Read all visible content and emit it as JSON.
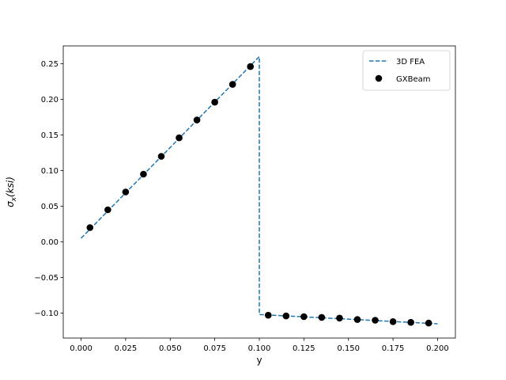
{
  "chart_data": {
    "type": "line",
    "title": "",
    "xlabel": "y",
    "ylabel": "σx(ksi)",
    "ylabel_parts": {
      "main": "σ",
      "sub": "x",
      "rest": "(ksi)"
    },
    "xlim": [
      -0.01,
      0.21
    ],
    "ylim": [
      -0.135,
      0.275
    ],
    "xticks": [
      0.0,
      0.025,
      0.05,
      0.075,
      0.1,
      0.125,
      0.15,
      0.175,
      0.2
    ],
    "xtick_labels": [
      "0.000",
      "0.025",
      "0.050",
      "0.075",
      "0.100",
      "0.125",
      "0.150",
      "0.175",
      "0.200"
    ],
    "yticks": [
      -0.1,
      -0.05,
      0.0,
      0.05,
      0.1,
      0.15,
      0.2,
      0.25
    ],
    "ytick_labels": [
      "−0.10",
      "−0.05",
      "0.00",
      "0.05",
      "0.10",
      "0.15",
      "0.20",
      "0.25"
    ],
    "grid": false,
    "legend_position": "top-right",
    "series": [
      {
        "name": "3D FEA",
        "style": "dashed-line",
        "color": "#1f77b4",
        "x": [
          0.0,
          0.1,
          0.1,
          0.2
        ],
        "y": [
          0.005,
          0.26,
          -0.102,
          -0.115
        ]
      },
      {
        "name": "GXBeam",
        "style": "markers",
        "color": "#000000",
        "x": [
          0.005,
          0.015,
          0.025,
          0.035,
          0.045,
          0.055,
          0.065,
          0.075,
          0.085,
          0.095,
          0.105,
          0.115,
          0.125,
          0.135,
          0.145,
          0.155,
          0.165,
          0.175,
          0.185,
          0.195
        ],
        "y": [
          0.02,
          0.045,
          0.07,
          0.095,
          0.12,
          0.146,
          0.171,
          0.196,
          0.221,
          0.246,
          -0.103,
          -0.104,
          -0.105,
          -0.106,
          -0.107,
          -0.109,
          -0.11,
          -0.112,
          -0.113,
          -0.114
        ]
      }
    ]
  }
}
